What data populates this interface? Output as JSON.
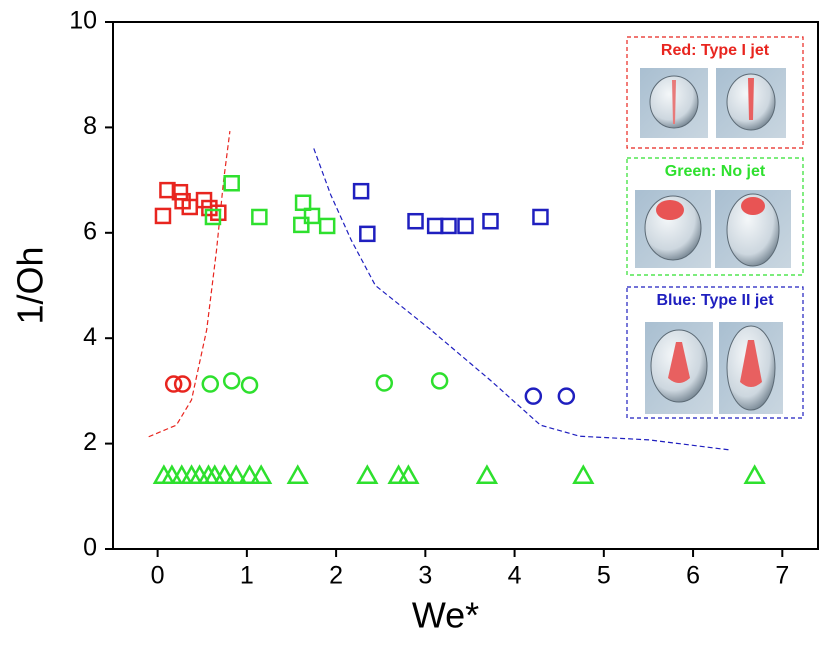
{
  "chart_data": {
    "type": "scatter",
    "x_label": "We*",
    "y_label": "1/Oh",
    "xlim": [
      -0.5,
      7.4
    ],
    "ylim": [
      0,
      10
    ],
    "xticks": [
      0,
      1,
      2,
      3,
      4,
      5,
      6,
      7
    ],
    "yticks": [
      0,
      2,
      4,
      6,
      8,
      10
    ],
    "series": [
      {
        "marker": "square",
        "color": "#e8251f",
        "x": [
          0.06,
          0.11,
          0.25,
          0.28,
          0.36,
          0.52,
          0.58,
          0.68
        ],
        "values": [
          6.32,
          6.81,
          6.77,
          6.6,
          6.49,
          6.62,
          6.47,
          6.38
        ]
      },
      {
        "marker": "square",
        "color": "#2ee02e",
        "x": [
          0.62,
          0.83,
          1.14,
          1.63,
          1.73,
          1.61,
          1.9
        ],
        "values": [
          6.3,
          6.94,
          6.3,
          6.57,
          6.32,
          6.15,
          6.13
        ]
      },
      {
        "marker": "square",
        "color": "#1f1fbf",
        "x": [
          2.28,
          2.35,
          2.89,
          3.11,
          3.26,
          3.45,
          3.73,
          4.29
        ],
        "values": [
          6.79,
          5.98,
          6.22,
          6.13,
          6.13,
          6.13,
          6.22,
          6.3
        ]
      },
      {
        "marker": "circle",
        "color": "#e8251f",
        "x": [
          0.18,
          0.28
        ],
        "values": [
          3.13,
          3.13
        ]
      },
      {
        "marker": "circle",
        "color": "#2ee02e",
        "x": [
          0.59,
          0.83,
          1.03,
          2.54,
          3.16
        ],
        "values": [
          3.13,
          3.19,
          3.11,
          3.15,
          3.19
        ]
      },
      {
        "marker": "circle",
        "color": "#1f1fbf",
        "x": [
          4.21,
          4.58
        ],
        "values": [
          2.9,
          2.9
        ]
      },
      {
        "marker": "triangle",
        "color": "#2ee02e",
        "x": [
          0.07,
          0.16,
          0.27,
          0.38,
          0.47,
          0.57,
          0.64,
          0.75,
          0.88,
          1.03,
          1.16,
          1.57,
          2.35,
          2.7,
          2.81,
          3.69,
          4.77,
          6.69
        ],
        "values": [
          1.39,
          1.39,
          1.39,
          1.39,
          1.39,
          1.39,
          1.39,
          1.39,
          1.39,
          1.39,
          1.39,
          1.39,
          1.39,
          1.39,
          1.39,
          1.39,
          1.39,
          1.39
        ]
      }
    ],
    "lines": [
      {
        "color": "#e8251f",
        "x": [
          -0.1,
          0.21,
          0.38,
          0.55,
          0.66,
          0.74,
          0.81
        ],
        "y": [
          2.13,
          2.35,
          2.83,
          4.16,
          5.67,
          7.0,
          7.93
        ]
      },
      {
        "color": "#1f1fbf",
        "x": [
          1.75,
          1.94,
          2.17,
          2.44,
          3.06,
          3.73,
          4.29,
          4.73,
          5.51,
          6.41
        ],
        "y": [
          7.6,
          6.72,
          5.86,
          5.0,
          4.16,
          3.2,
          2.35,
          2.14,
          2.07,
          1.88
        ]
      }
    ],
    "annotations": [
      {
        "text": "Red: Type I jet",
        "color": "#e8251f"
      },
      {
        "text": "Green: No jet",
        "color": "#2ee02e"
      },
      {
        "text": "Blue: Type II jet",
        "color": "#1f1fbf"
      }
    ]
  }
}
